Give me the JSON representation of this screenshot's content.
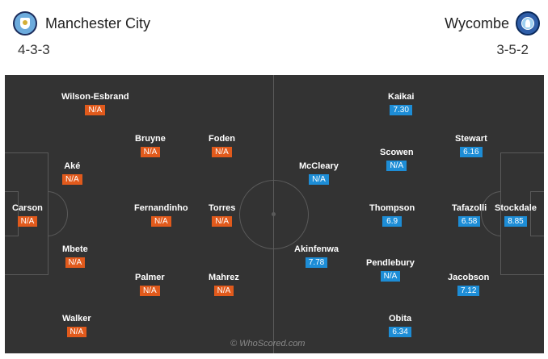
{
  "home": {
    "name": "Manchester City",
    "formation": "4-3-3",
    "badge_icon": "manchester-city-crest-icon",
    "rating_color": "#e15a1c",
    "players": [
      {
        "id": "wilson-esbrand",
        "name": "Wilson-Esbrand",
        "rating": "N/A"
      },
      {
        "id": "bruyne",
        "name": "Bruyne",
        "rating": "N/A"
      },
      {
        "id": "foden",
        "name": "Foden",
        "rating": "N/A"
      },
      {
        "id": "ake",
        "name": "Aké",
        "rating": "N/A"
      },
      {
        "id": "carson",
        "name": "Carson",
        "rating": "N/A"
      },
      {
        "id": "fernandinho",
        "name": "Fernandinho",
        "rating": "N/A"
      },
      {
        "id": "torres",
        "name": "Torres",
        "rating": "N/A"
      },
      {
        "id": "mbete",
        "name": "Mbete",
        "rating": "N/A"
      },
      {
        "id": "palmer",
        "name": "Palmer",
        "rating": "N/A"
      },
      {
        "id": "mahrez",
        "name": "Mahrez",
        "rating": "N/A"
      },
      {
        "id": "walker",
        "name": "Walker",
        "rating": "N/A"
      }
    ]
  },
  "away": {
    "name": "Wycombe",
    "formation": "3-5-2",
    "badge_icon": "wycombe-crest-icon",
    "rating_color": "#1d8dd6",
    "players": [
      {
        "id": "kaikai",
        "name": "Kaikai",
        "rating": "7.30"
      },
      {
        "id": "stewart",
        "name": "Stewart",
        "rating": "6.16"
      },
      {
        "id": "scowen",
        "name": "Scowen",
        "rating": "N/A"
      },
      {
        "id": "mccleary",
        "name": "McCleary",
        "rating": "N/A"
      },
      {
        "id": "thompson",
        "name": "Thompson",
        "rating": "6.9"
      },
      {
        "id": "tafazolli",
        "name": "Tafazolli",
        "rating": "6.58"
      },
      {
        "id": "stockdale",
        "name": "Stockdale",
        "rating": "8.85"
      },
      {
        "id": "akinfenwa",
        "name": "Akinfenwa",
        "rating": "7.78"
      },
      {
        "id": "pendlebury",
        "name": "Pendlebury",
        "rating": "N/A"
      },
      {
        "id": "jacobson",
        "name": "Jacobson",
        "rating": "7.12"
      },
      {
        "id": "obita",
        "name": "Obita",
        "rating": "6.34"
      }
    ]
  },
  "watermark": "© WhoScored.com"
}
